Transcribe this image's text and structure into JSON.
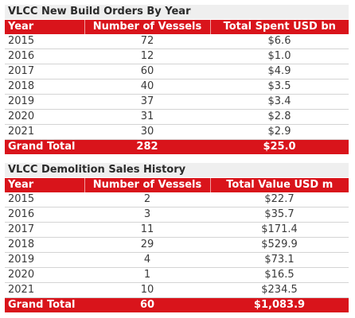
{
  "chart_data": [
    {
      "type": "table",
      "title": "VLCC New Build Orders By Year",
      "columns": [
        "Year",
        "Number of Vessels",
        "Total Spent USD bn"
      ],
      "rows": [
        [
          "2015",
          "72",
          "$6.6"
        ],
        [
          "2016",
          "12",
          "$1.0"
        ],
        [
          "2017",
          "60",
          "$4.9"
        ],
        [
          "2018",
          "40",
          "$3.5"
        ],
        [
          "2019",
          "37",
          "$3.4"
        ],
        [
          "2020",
          "31",
          "$2.8"
        ],
        [
          "2021",
          "30",
          "$2.9"
        ]
      ],
      "total": [
        "Grand Total",
        "282",
        "$25.0"
      ]
    },
    {
      "type": "table",
      "title": "VLCC Demolition Sales History",
      "columns": [
        "Year",
        "Number of Vessels",
        "Total Value USD m"
      ],
      "rows": [
        [
          "2015",
          "2",
          "$22.7"
        ],
        [
          "2016",
          "3",
          "$35.7"
        ],
        [
          "2017",
          "11",
          "$171.4"
        ],
        [
          "2018",
          "29",
          "$529.9"
        ],
        [
          "2019",
          "4",
          "$73.1"
        ],
        [
          "2020",
          "1",
          "$16.5"
        ],
        [
          "2021",
          "10",
          "$234.5"
        ]
      ],
      "total": [
        "Grand Total",
        "60",
        "$1,083.9"
      ]
    }
  ],
  "colors": {
    "header_bg": "#d9141b",
    "title_bg": "#efefef",
    "row_border": "#d4d4d4"
  }
}
